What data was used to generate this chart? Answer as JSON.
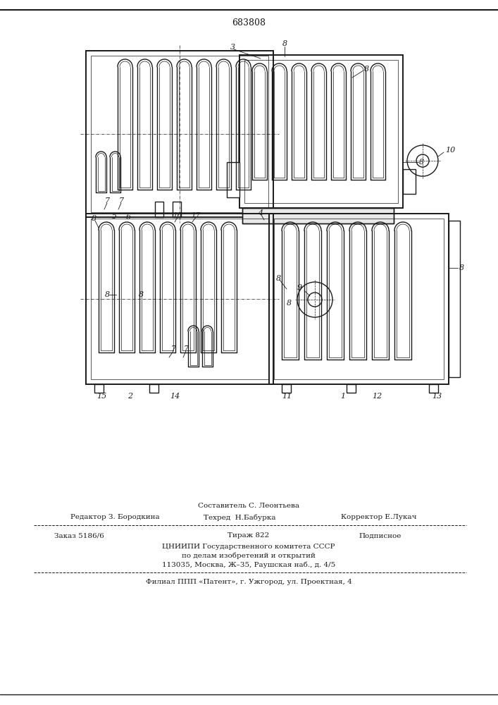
{
  "patent_number": "683808",
  "bg": "#ffffff",
  "lc": "#1a1a1a",
  "sostavitel": "Составитель С. Леонтьева",
  "editor": "Редактор З. Бородкина",
  "techred": "Техред  Н.Бабурка",
  "korrektor": "Корректор Е.Лукач",
  "zakaz": "Заказ 5186/6",
  "tirazh": "Тираж 822",
  "podpisnoe": "Подписное",
  "cniip1": "ЦНИИПИ Государственного комитета СССР",
  "cniip2": "по делам изобретений и открытий",
  "cniip3": "113035, Москва, Ж–35, Раушская наб., д. 4/5",
  "filial": "Филиал ППП «Патент», г. Ужгород, ул. Проектная, 4"
}
